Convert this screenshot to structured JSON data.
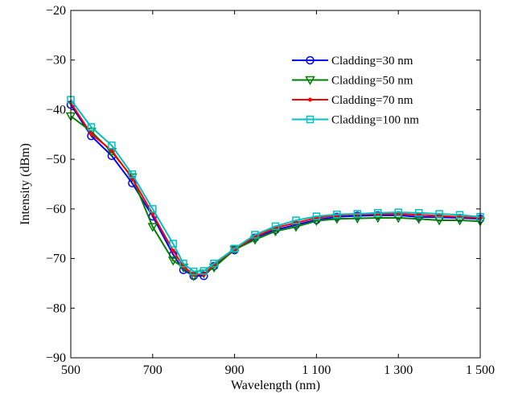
{
  "chart_data": {
    "type": "line",
    "xlabel": "Wavelength (nm)",
    "ylabel": "Intensity (dBm)",
    "xlim": [
      500,
      1500
    ],
    "ylim": [
      -90,
      -20
    ],
    "xticks": [
      500,
      700,
      900,
      1100,
      1300,
      1500
    ],
    "xtick_labels": [
      "500",
      "700",
      "900",
      "1 100",
      "1 300",
      "1 500"
    ],
    "yticks": [
      -90,
      -80,
      -70,
      -60,
      -50,
      -40,
      -30,
      -20
    ],
    "ytick_labels": [
      "−90",
      "−80",
      "−70",
      "−60",
      "−50",
      "−40",
      "−30",
      "−20"
    ],
    "grid": false,
    "legend_position": "top-right",
    "x": [
      500,
      550,
      600,
      650,
      700,
      750,
      775,
      800,
      825,
      850,
      900,
      950,
      1000,
      1050,
      1100,
      1150,
      1200,
      1250,
      1300,
      1350,
      1400,
      1450,
      1500
    ],
    "series": [
      {
        "name": "Cladding=30 nm",
        "color": "#0000ff",
        "marker": "circle",
        "values": [
          -39,
          -45.3,
          -49.3,
          -54.8,
          -61.5,
          -69.2,
          -72.3,
          -73.5,
          -73.5,
          -71.5,
          -68.3,
          -65.8,
          -64.2,
          -63.2,
          -62.2,
          -61.6,
          -61.4,
          -61.3,
          -61.3,
          -61.6,
          -61.7,
          -61.8,
          -62
        ]
      },
      {
        "name": "Cladding=50 nm",
        "color": "#008000",
        "marker": "triangle-down",
        "values": [
          -41.3,
          -44.4,
          -48.5,
          -53.6,
          -63.6,
          -70.4,
          -71.8,
          -73.5,
          -73,
          -71.8,
          -68.2,
          -66.2,
          -64.5,
          -63.6,
          -62.4,
          -62,
          -61.9,
          -61.8,
          -61.8,
          -62,
          -62.3,
          -62.3,
          -62.5
        ]
      },
      {
        "name": "Cladding=70 nm",
        "color": "#ff0000",
        "marker": "point",
        "values": [
          -38.6,
          -44.9,
          -48.2,
          -53.8,
          -61,
          -68.4,
          -71.6,
          -73.2,
          -73.2,
          -71.2,
          -68.1,
          -65.6,
          -63.8,
          -62.8,
          -61.8,
          -61.3,
          -61.1,
          -61,
          -61,
          -61.2,
          -61.4,
          -61.6,
          -61.8
        ]
      },
      {
        "name": "Cladding=100 nm",
        "color": "#00bfbf",
        "marker": "square",
        "values": [
          -38,
          -43.5,
          -47.2,
          -53,
          -60,
          -67,
          -71,
          -72.6,
          -72.5,
          -71,
          -68,
          -65.2,
          -63.5,
          -62.3,
          -61.5,
          -61.1,
          -61,
          -60.8,
          -60.7,
          -60.8,
          -61,
          -61.2,
          -61.6
        ]
      }
    ]
  }
}
